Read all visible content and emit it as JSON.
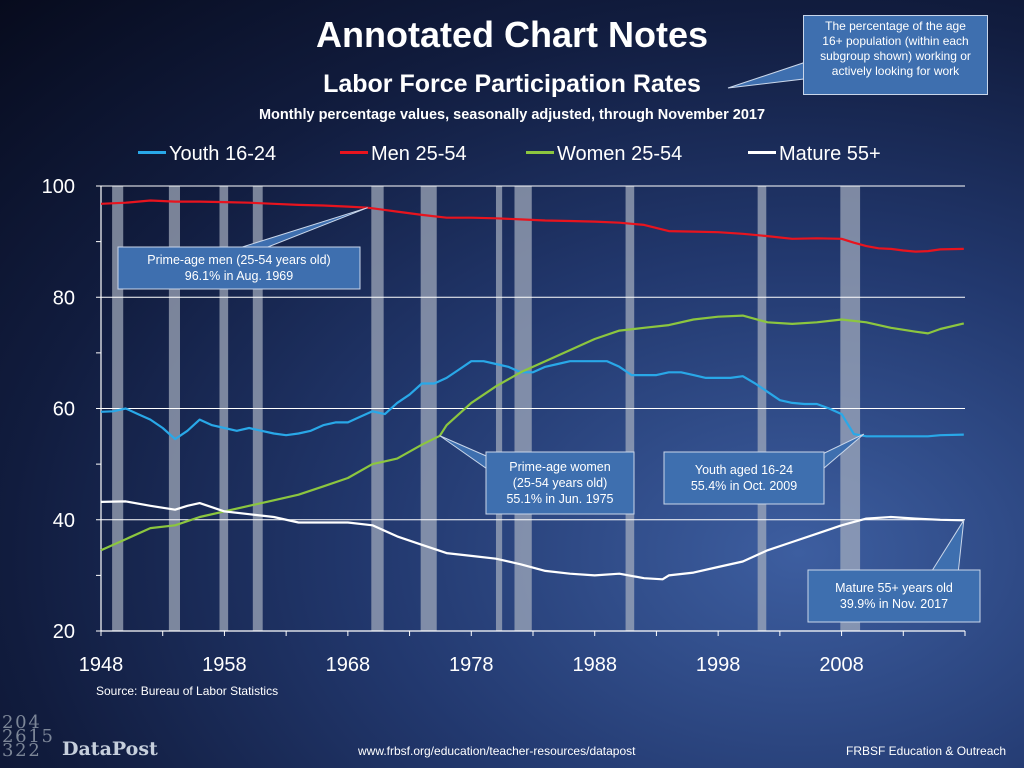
{
  "header": {
    "title": "Annotated Chart Notes",
    "subtitle": "Labor Force Participation Rates",
    "subsubtitle": "Monthly percentage values, seasonally adjusted, through November 2017",
    "callout_lines": [
      "The  percentage of the age",
      "16+ population (within each",
      "subgroup shown) working or",
      "actively looking for work"
    ]
  },
  "footer": {
    "source": "Source: Bureau of Labor Statistics",
    "logo_text": "DataPost",
    "url": "www.frbsf.org/education/teacher-resources/datapost",
    "org": "FRBSF Education & Outreach"
  },
  "colors": {
    "youth": "#29a8e8",
    "men": "#e8141e",
    "women": "#8cc63f",
    "mature": "#ffffff",
    "recession_bar": "#a6afbf"
  },
  "annotations": [
    {
      "id": "men",
      "lines": [
        "Prime-age men (25-54 years old)",
        "96.1% in Aug. 1969"
      ]
    },
    {
      "id": "women",
      "lines": [
        "Prime-age women",
        "(25-54 years old)",
        "55.1% in Jun. 1975"
      ]
    },
    {
      "id": "youth",
      "lines": [
        "Youth aged 16-24",
        "55.4% in Oct. 2009"
      ]
    },
    {
      "id": "mature",
      "lines": [
        "Mature 55+ years old",
        "39.9% in Nov. 2017"
      ]
    }
  ],
  "chart_data": {
    "type": "line",
    "title": "Labor Force Participation Rates",
    "xlabel": "",
    "ylabel": "",
    "xlim": [
      1948,
      2018
    ],
    "ylim": [
      20,
      100
    ],
    "x_ticks": [
      "1948",
      "1958",
      "1968",
      "1978",
      "1988",
      "1998",
      "2008"
    ],
    "y_ticks": [
      "20",
      "40",
      "60",
      "80",
      "100"
    ],
    "grid": "horizontal",
    "legend_position": "top",
    "recessions": [
      [
        1948.9,
        1949.8
      ],
      [
        1953.5,
        1954.4
      ],
      [
        1957.6,
        1958.3
      ],
      [
        1960.3,
        1961.1
      ],
      [
        1969.9,
        1970.9
      ],
      [
        1973.9,
        1975.2
      ],
      [
        1980.0,
        1980.5
      ],
      [
        1981.5,
        1982.9
      ],
      [
        1990.5,
        1991.2
      ],
      [
        2001.2,
        2001.9
      ],
      [
        2007.9,
        2009.5
      ]
    ],
    "series": [
      {
        "name": "Youth 16-24",
        "color": "#29a8e8",
        "x": [
          1948,
          1949,
          1950,
          1951,
          1952,
          1953,
          1954,
          1955,
          1956,
          1957,
          1958,
          1959,
          1960,
          1961,
          1962,
          1963,
          1964,
          1965,
          1966,
          1967,
          1968,
          1969,
          1970,
          1971,
          1972,
          1973,
          1974,
          1975,
          1976,
          1977,
          1978,
          1979,
          1980,
          1981,
          1982,
          1983,
          1984,
          1985,
          1986,
          1987,
          1988,
          1989,
          1990,
          1991,
          1992,
          1993,
          1994,
          1995,
          1996,
          1997,
          1998,
          1999,
          2000,
          2001,
          2002,
          2003,
          2004,
          2005,
          2006,
          2007,
          2008,
          2009,
          2010,
          2011,
          2012,
          2013,
          2014,
          2015,
          2016,
          2017.9
        ],
        "y": [
          59.4,
          59.5,
          60.0,
          59.0,
          58.0,
          56.5,
          54.5,
          56.0,
          58.0,
          57.0,
          56.5,
          56.0,
          56.5,
          56.0,
          55.5,
          55.2,
          55.5,
          56.0,
          57.0,
          57.5,
          57.5,
          58.5,
          59.5,
          59.0,
          61.0,
          62.5,
          64.5,
          64.5,
          65.5,
          67.0,
          68.5,
          68.5,
          68.0,
          67.5,
          66.5,
          66.5,
          67.5,
          68.0,
          68.5,
          68.5,
          68.5,
          68.5,
          67.5,
          66.0,
          66.0,
          66.0,
          66.5,
          66.5,
          66.0,
          65.5,
          65.5,
          65.5,
          65.8,
          64.5,
          63.0,
          61.5,
          61.0,
          60.8,
          60.8,
          60.0,
          59.0,
          55.4,
          55.0,
          55.0,
          55.0,
          55.0,
          55.0,
          55.0,
          55.2,
          55.3
        ]
      },
      {
        "name": "Men 25-54",
        "color": "#e8141e",
        "x": [
          1948,
          1950,
          1952,
          1954,
          1956,
          1958,
          1960,
          1962,
          1964,
          1966,
          1968,
          1969.6,
          1970,
          1972,
          1974,
          1976,
          1978,
          1980,
          1982,
          1984,
          1986,
          1988,
          1990,
          1992,
          1994,
          1996,
          1998,
          2000,
          2002,
          2004,
          2006,
          2008,
          2009,
          2010,
          2011,
          2012,
          2013,
          2014,
          2015,
          2016,
          2017.9
        ],
        "y": [
          96.8,
          97.0,
          97.4,
          97.2,
          97.2,
          97.1,
          97.0,
          96.8,
          96.6,
          96.5,
          96.3,
          96.1,
          96.0,
          95.4,
          94.8,
          94.3,
          94.3,
          94.2,
          94.0,
          93.8,
          93.7,
          93.6,
          93.4,
          93.0,
          91.9,
          91.8,
          91.7,
          91.4,
          91.0,
          90.5,
          90.6,
          90.5,
          89.8,
          89.2,
          88.8,
          88.7,
          88.4,
          88.2,
          88.3,
          88.6,
          88.7
        ]
      },
      {
        "name": "Women 25-54",
        "color": "#8cc63f",
        "x": [
          1948,
          1950,
          1952,
          1954,
          1956,
          1958,
          1960,
          1962,
          1964,
          1966,
          1968,
          1970,
          1972,
          1974,
          1975.45,
          1976,
          1978,
          1980,
          1982,
          1984,
          1986,
          1988,
          1990,
          1992,
          1994,
          1996,
          1998,
          2000,
          2002,
          2004,
          2006,
          2008,
          2010,
          2012,
          2014,
          2015,
          2016,
          2017.9
        ],
        "y": [
          34.5,
          36.5,
          38.5,
          39.0,
          40.5,
          41.5,
          42.5,
          43.5,
          44.5,
          46.0,
          47.5,
          50.0,
          51.0,
          53.5,
          55.1,
          57.0,
          61.0,
          64.0,
          66.5,
          68.5,
          70.5,
          72.5,
          74.0,
          74.5,
          75.0,
          76.0,
          76.5,
          76.7,
          75.5,
          75.2,
          75.5,
          76.0,
          75.5,
          74.5,
          73.8,
          73.5,
          74.3,
          75.3
        ]
      },
      {
        "name": "Mature 55+",
        "color": "#ffffff",
        "x": [
          1948,
          1950,
          1952,
          1954,
          1955,
          1956,
          1958,
          1960,
          1962,
          1964,
          1966,
          1968,
          1970,
          1972,
          1974,
          1976,
          1978,
          1980,
          1982,
          1984,
          1986,
          1988,
          1990,
          1992,
          1993.5,
          1994,
          1996,
          1998,
          2000,
          2002,
          2004,
          2006,
          2008,
          2010,
          2012,
          2014,
          2016,
          2017.9
        ],
        "y": [
          43.2,
          43.3,
          42.5,
          41.8,
          42.5,
          43.0,
          41.5,
          41.0,
          40.5,
          39.5,
          39.5,
          39.5,
          39.0,
          37.0,
          35.5,
          34.0,
          33.5,
          33.0,
          32.0,
          30.8,
          30.3,
          30.0,
          30.3,
          29.5,
          29.3,
          30.0,
          30.5,
          31.5,
          32.5,
          34.5,
          36.0,
          37.5,
          39.0,
          40.2,
          40.5,
          40.2,
          40.0,
          39.9
        ]
      }
    ]
  }
}
